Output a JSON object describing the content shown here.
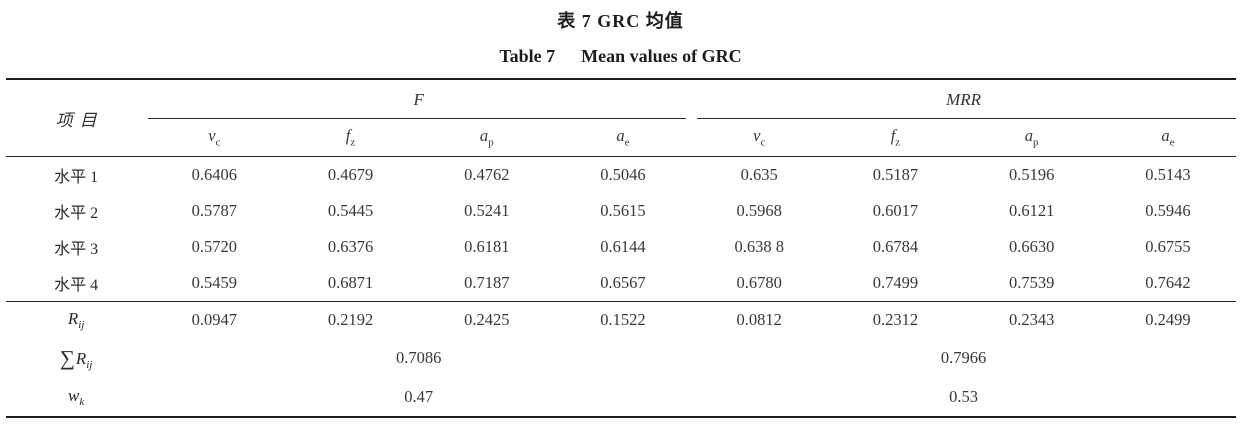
{
  "titles": {
    "zh": "表 7 GRC 均值",
    "en_prefix": "Table 7",
    "en_main": "Mean values of GRC"
  },
  "table": {
    "item_col_header": "项目",
    "groups": [
      {
        "name": "F"
      },
      {
        "name": "MRR"
      }
    ],
    "subcolumns": [
      {
        "base": "v",
        "sub": "c"
      },
      {
        "base": "f",
        "sub": "z"
      },
      {
        "base": "a",
        "sub": "p"
      },
      {
        "base": "a",
        "sub": "e"
      }
    ],
    "level_rows": [
      {
        "label": "水平 1",
        "values": [
          "0.6406",
          "0.4679",
          "0.4762",
          "0.5046",
          "0.635",
          "0.5187",
          "0.5196",
          "0.5143"
        ]
      },
      {
        "label": "水平 2",
        "values": [
          "0.5787",
          "0.5445",
          "0.5241",
          "0.5615",
          "0.5968",
          "0.6017",
          "0.6121",
          "0.5946"
        ]
      },
      {
        "label": "水平 3",
        "values": [
          "0.5720",
          "0.6376",
          "0.6181",
          "0.6144",
          "0.638 8",
          "0.6784",
          "0.6630",
          "0.6755"
        ]
      },
      {
        "label": "水平 4",
        "values": [
          "0.5459",
          "0.6871",
          "0.7187",
          "0.6567",
          "0.6780",
          "0.7499",
          "0.7539",
          "0.7642"
        ]
      }
    ],
    "rij_row": {
      "label": {
        "base": "R",
        "sub": "ij"
      },
      "values": [
        "0.0947",
        "0.2192",
        "0.2425",
        "0.1522",
        "0.0812",
        "0.2312",
        "0.2343",
        "0.2499"
      ]
    },
    "sum_row": {
      "label": {
        "sigma": "∑",
        "base": "R",
        "sub": "ij"
      },
      "values": [
        "0.7086",
        "0.7966"
      ]
    },
    "wk_row": {
      "label": {
        "base": "w",
        "sub": "k"
      },
      "values": [
        "0.47",
        "0.53"
      ]
    }
  }
}
